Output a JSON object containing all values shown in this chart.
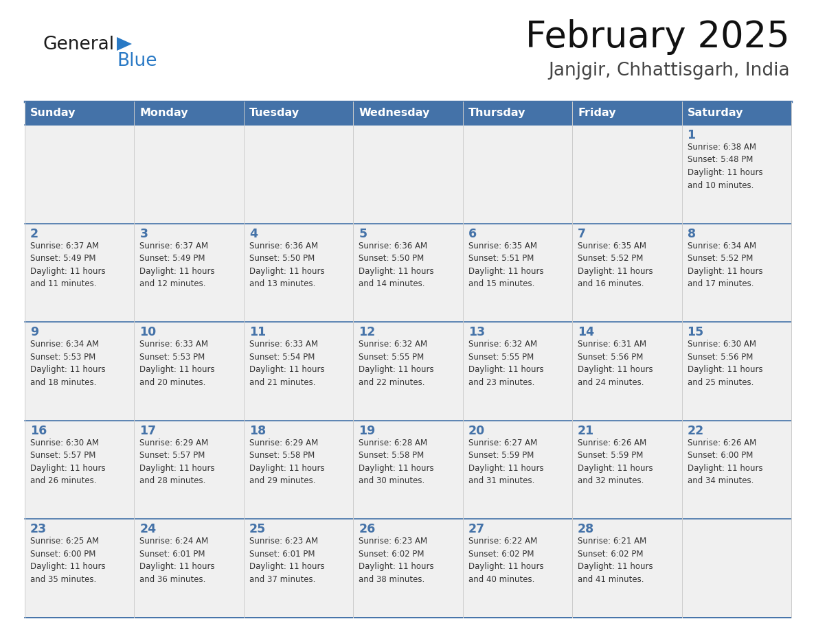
{
  "title": "February 2025",
  "subtitle": "Janjgir, Chhattisgarh, India",
  "header_color": "#4472a8",
  "header_text_color": "#ffffff",
  "cell_bg_color": "#f0f0f0",
  "day_number_color": "#4472a8",
  "text_color": "#333333",
  "border_color": "#4472a8",
  "separator_color": "#b0b8c8",
  "days_of_week": [
    "Sunday",
    "Monday",
    "Tuesday",
    "Wednesday",
    "Thursday",
    "Friday",
    "Saturday"
  ],
  "weeks": [
    [
      {
        "day": null,
        "info": null
      },
      {
        "day": null,
        "info": null
      },
      {
        "day": null,
        "info": null
      },
      {
        "day": null,
        "info": null
      },
      {
        "day": null,
        "info": null
      },
      {
        "day": null,
        "info": null
      },
      {
        "day": 1,
        "info": "Sunrise: 6:38 AM\nSunset: 5:48 PM\nDaylight: 11 hours\nand 10 minutes."
      }
    ],
    [
      {
        "day": 2,
        "info": "Sunrise: 6:37 AM\nSunset: 5:49 PM\nDaylight: 11 hours\nand 11 minutes."
      },
      {
        "day": 3,
        "info": "Sunrise: 6:37 AM\nSunset: 5:49 PM\nDaylight: 11 hours\nand 12 minutes."
      },
      {
        "day": 4,
        "info": "Sunrise: 6:36 AM\nSunset: 5:50 PM\nDaylight: 11 hours\nand 13 minutes."
      },
      {
        "day": 5,
        "info": "Sunrise: 6:36 AM\nSunset: 5:50 PM\nDaylight: 11 hours\nand 14 minutes."
      },
      {
        "day": 6,
        "info": "Sunrise: 6:35 AM\nSunset: 5:51 PM\nDaylight: 11 hours\nand 15 minutes."
      },
      {
        "day": 7,
        "info": "Sunrise: 6:35 AM\nSunset: 5:52 PM\nDaylight: 11 hours\nand 16 minutes."
      },
      {
        "day": 8,
        "info": "Sunrise: 6:34 AM\nSunset: 5:52 PM\nDaylight: 11 hours\nand 17 minutes."
      }
    ],
    [
      {
        "day": 9,
        "info": "Sunrise: 6:34 AM\nSunset: 5:53 PM\nDaylight: 11 hours\nand 18 minutes."
      },
      {
        "day": 10,
        "info": "Sunrise: 6:33 AM\nSunset: 5:53 PM\nDaylight: 11 hours\nand 20 minutes."
      },
      {
        "day": 11,
        "info": "Sunrise: 6:33 AM\nSunset: 5:54 PM\nDaylight: 11 hours\nand 21 minutes."
      },
      {
        "day": 12,
        "info": "Sunrise: 6:32 AM\nSunset: 5:55 PM\nDaylight: 11 hours\nand 22 minutes."
      },
      {
        "day": 13,
        "info": "Sunrise: 6:32 AM\nSunset: 5:55 PM\nDaylight: 11 hours\nand 23 minutes."
      },
      {
        "day": 14,
        "info": "Sunrise: 6:31 AM\nSunset: 5:56 PM\nDaylight: 11 hours\nand 24 minutes."
      },
      {
        "day": 15,
        "info": "Sunrise: 6:30 AM\nSunset: 5:56 PM\nDaylight: 11 hours\nand 25 minutes."
      }
    ],
    [
      {
        "day": 16,
        "info": "Sunrise: 6:30 AM\nSunset: 5:57 PM\nDaylight: 11 hours\nand 26 minutes."
      },
      {
        "day": 17,
        "info": "Sunrise: 6:29 AM\nSunset: 5:57 PM\nDaylight: 11 hours\nand 28 minutes."
      },
      {
        "day": 18,
        "info": "Sunrise: 6:29 AM\nSunset: 5:58 PM\nDaylight: 11 hours\nand 29 minutes."
      },
      {
        "day": 19,
        "info": "Sunrise: 6:28 AM\nSunset: 5:58 PM\nDaylight: 11 hours\nand 30 minutes."
      },
      {
        "day": 20,
        "info": "Sunrise: 6:27 AM\nSunset: 5:59 PM\nDaylight: 11 hours\nand 31 minutes."
      },
      {
        "day": 21,
        "info": "Sunrise: 6:26 AM\nSunset: 5:59 PM\nDaylight: 11 hours\nand 32 minutes."
      },
      {
        "day": 22,
        "info": "Sunrise: 6:26 AM\nSunset: 6:00 PM\nDaylight: 11 hours\nand 34 minutes."
      }
    ],
    [
      {
        "day": 23,
        "info": "Sunrise: 6:25 AM\nSunset: 6:00 PM\nDaylight: 11 hours\nand 35 minutes."
      },
      {
        "day": 24,
        "info": "Sunrise: 6:24 AM\nSunset: 6:01 PM\nDaylight: 11 hours\nand 36 minutes."
      },
      {
        "day": 25,
        "info": "Sunrise: 6:23 AM\nSunset: 6:01 PM\nDaylight: 11 hours\nand 37 minutes."
      },
      {
        "day": 26,
        "info": "Sunrise: 6:23 AM\nSunset: 6:02 PM\nDaylight: 11 hours\nand 38 minutes."
      },
      {
        "day": 27,
        "info": "Sunrise: 6:22 AM\nSunset: 6:02 PM\nDaylight: 11 hours\nand 40 minutes."
      },
      {
        "day": 28,
        "info": "Sunrise: 6:21 AM\nSunset: 6:02 PM\nDaylight: 11 hours\nand 41 minutes."
      },
      {
        "day": null,
        "info": null
      }
    ]
  ],
  "logo_text_general": "General",
  "logo_text_blue": "Blue",
  "logo_color_general": "#1a1a1a",
  "logo_color_blue": "#2979c5",
  "logo_triangle_color": "#2979c5"
}
